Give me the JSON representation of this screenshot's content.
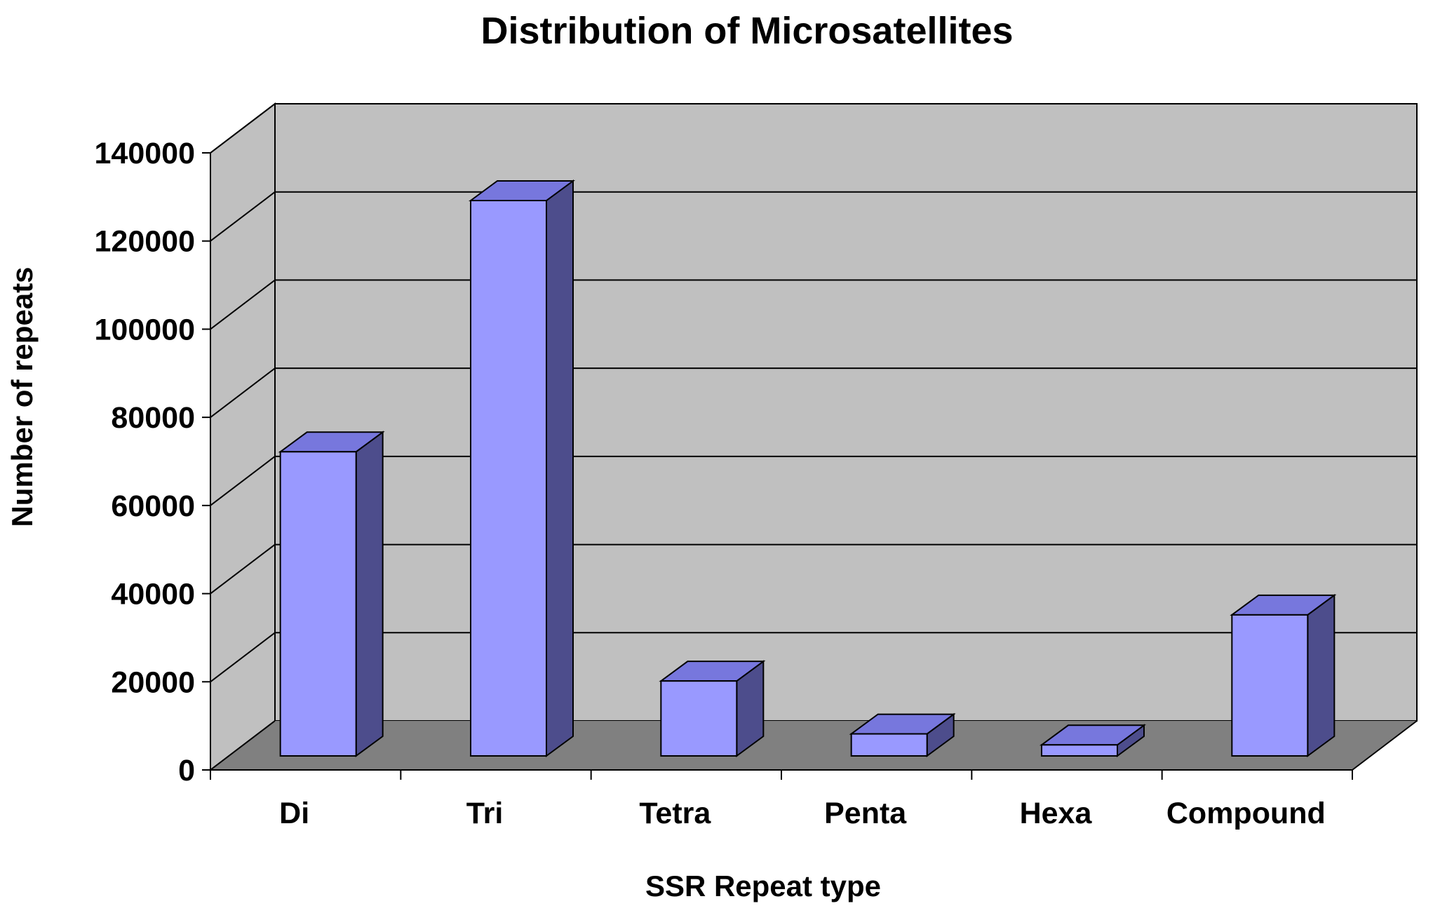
{
  "chart_data": {
    "type": "bar",
    "title": "Distribution of Microsatellites",
    "xlabel": "SSR Repeat type",
    "ylabel": "Number of repeats",
    "categories": [
      "Di",
      "Tri",
      "Tetra",
      "Penta",
      "Hexa",
      "Compound"
    ],
    "values": [
      69000,
      126000,
      17000,
      5000,
      2500,
      32000
    ],
    "ylim": [
      0,
      140000
    ],
    "yticks": [
      0,
      20000,
      40000,
      60000,
      80000,
      100000,
      120000,
      140000
    ],
    "ytick_labels": [
      "0",
      "20000",
      "40000",
      "60000",
      "80000",
      "100000",
      "120000",
      "140000"
    ],
    "grid": true,
    "three_d": true,
    "legend": "none",
    "colors": {
      "bar_front": "#9999ff",
      "bar_top": "#7777dd",
      "bar_side": "#4d4d8c",
      "back_wall": "#c0c0c0",
      "side_wall": "#c0c0c0",
      "floor": "#808080",
      "gridline": "#000000",
      "text": "#000000"
    }
  }
}
